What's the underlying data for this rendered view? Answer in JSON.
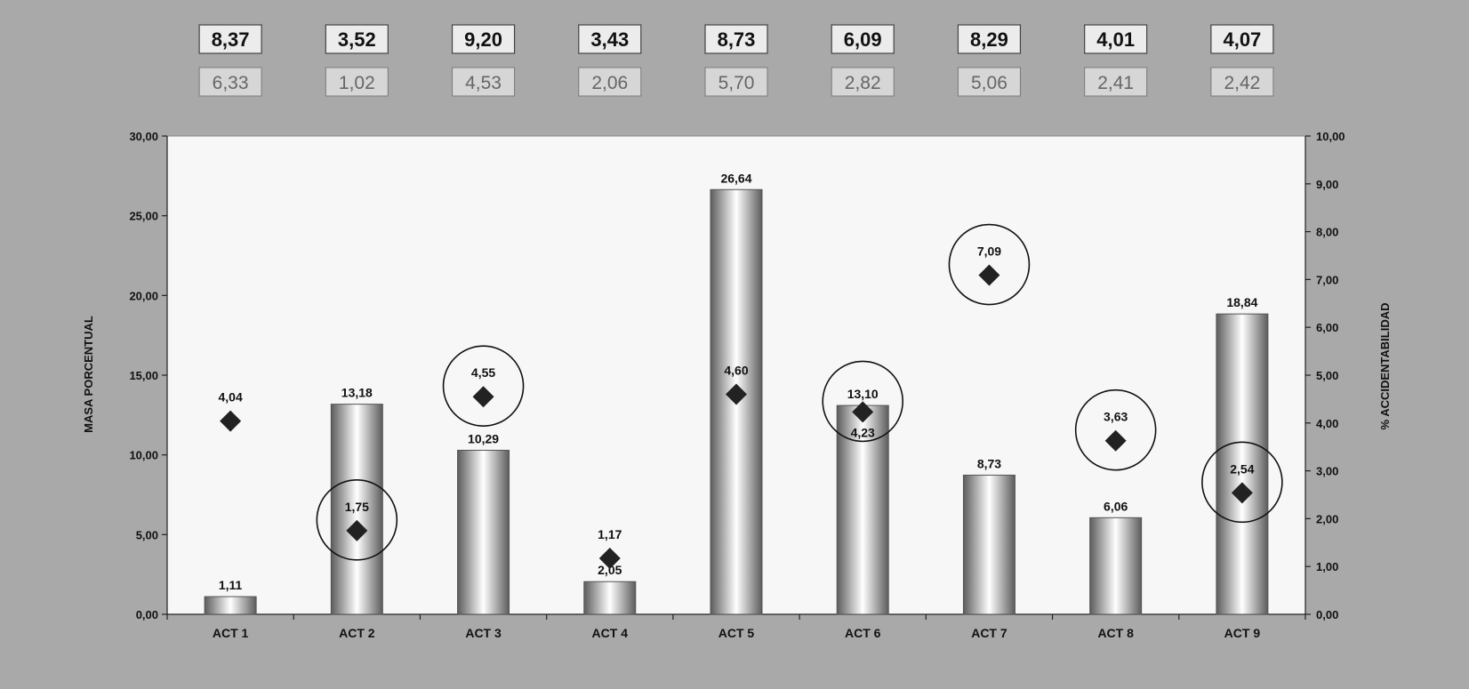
{
  "chart_data": {
    "type": "bar",
    "categories": [
      "ACT 1",
      "ACT 2",
      "ACT 3",
      "ACT 4",
      "ACT 5",
      "ACT 6",
      "ACT 7",
      "ACT 8",
      "ACT 9"
    ],
    "series": [
      {
        "type": "bar",
        "axis": "left",
        "values": [
          1.11,
          13.18,
          10.29,
          2.05,
          26.64,
          13.1,
          8.73,
          6.06,
          18.84
        ],
        "labels": [
          "1,11",
          "13,18",
          "10,29",
          "2,05",
          "26,64",
          "13,10",
          "8,73",
          "6,06",
          "18,84"
        ]
      },
      {
        "type": "scatter",
        "axis": "right",
        "marker": "diamond",
        "values": [
          4.04,
          1.75,
          4.55,
          1.17,
          4.6,
          4.23,
          7.09,
          3.63,
          2.54
        ],
        "labels": [
          "4,04",
          "1,75",
          "4,55",
          "1,17",
          "4,60",
          "4,23",
          "7,09",
          "3,63",
          "2,54"
        ],
        "circled": [
          false,
          true,
          true,
          false,
          false,
          true,
          true,
          true,
          true
        ]
      }
    ],
    "ylabel": "MASA PORCENTUAL",
    "y2label": "% ACCIDENTABILIDAD",
    "ylim": [
      0,
      30
    ],
    "y2lim": [
      0,
      10
    ],
    "yticks": [
      "0,00",
      "5,00",
      "10,00",
      "15,00",
      "20,00",
      "25,00",
      "30,00"
    ],
    "y2ticks": [
      "0,00",
      "1,00",
      "2,00",
      "3,00",
      "4,00",
      "5,00",
      "6,00",
      "7,00",
      "8,00",
      "9,00",
      "10,00"
    ],
    "top_table": {
      "row1": [
        "8,37",
        "3,52",
        "9,20",
        "3,43",
        "8,73",
        "6,09",
        "8,29",
        "4,01",
        "4,07"
      ],
      "row2": [
        "6,33",
        "1,02",
        "4,53",
        "2,06",
        "5,70",
        "2,82",
        "5,06",
        "2,41",
        "2,42"
      ]
    },
    "colors": {
      "bar_edge": "#555555",
      "bar_center": "#ffffff",
      "marker": "#222222",
      "plot_bg": "#f7f7f7",
      "page_bg": "#a9a9a9"
    }
  }
}
